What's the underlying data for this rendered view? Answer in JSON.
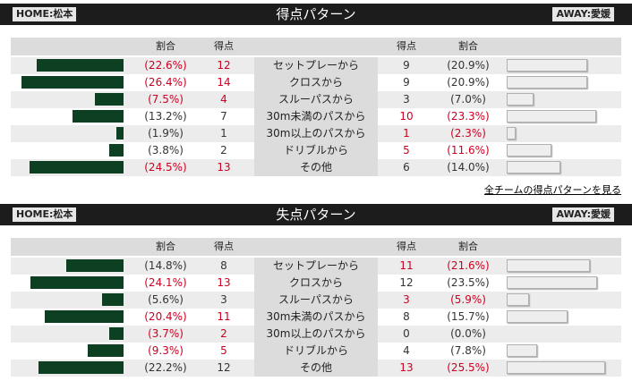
{
  "colors": {
    "home_bar": "#0d3f22",
    "away_bar": "#eeeeee",
    "highlight": "#cc0022",
    "title_bg": "#1c1c1c"
  },
  "home_tag": "HOME:松本",
  "away_tag": "AWAY:愛媛",
  "column_headers": {
    "pct": "割合",
    "count": "得点"
  },
  "sections": [
    {
      "title": "得点パターン",
      "rows": [
        {
          "label": "セットプレーから",
          "home_pct": "(22.6%)",
          "home_count": "12",
          "home_highlight": true,
          "home_value": 22.6,
          "away_count": "9",
          "away_pct": "(20.9%)",
          "away_highlight": false,
          "away_value": 20.9
        },
        {
          "label": "クロスから",
          "home_pct": "(26.4%)",
          "home_count": "14",
          "home_highlight": true,
          "home_value": 26.4,
          "away_count": "9",
          "away_pct": "(20.9%)",
          "away_highlight": false,
          "away_value": 20.9
        },
        {
          "label": "スルーパスから",
          "home_pct": "(7.5%)",
          "home_count": "4",
          "home_highlight": true,
          "home_value": 7.5,
          "away_count": "3",
          "away_pct": "(7.0%)",
          "away_highlight": false,
          "away_value": 7.0
        },
        {
          "label": "30m未満のパスから",
          "home_pct": "(13.2%)",
          "home_count": "7",
          "home_highlight": false,
          "home_value": 13.2,
          "away_count": "10",
          "away_pct": "(23.3%)",
          "away_highlight": true,
          "away_value": 23.3
        },
        {
          "label": "30m以上のパスから",
          "home_pct": "(1.9%)",
          "home_count": "1",
          "home_highlight": false,
          "home_value": 1.9,
          "away_count": "1",
          "away_pct": "(2.3%)",
          "away_highlight": true,
          "away_value": 2.3
        },
        {
          "label": "ドリブルから",
          "home_pct": "(3.8%)",
          "home_count": "2",
          "home_highlight": false,
          "home_value": 3.8,
          "away_count": "5",
          "away_pct": "(11.6%)",
          "away_highlight": true,
          "away_value": 11.6
        },
        {
          "label": "その他",
          "home_pct": "(24.5%)",
          "home_count": "13",
          "home_highlight": true,
          "home_value": 24.5,
          "away_count": "6",
          "away_pct": "(14.0%)",
          "away_highlight": false,
          "away_value": 14.0
        }
      ],
      "link": "全チームの得点パターンを見る"
    },
    {
      "title": "失点パターン",
      "rows": [
        {
          "label": "セットプレーから",
          "home_pct": "(14.8%)",
          "home_count": "8",
          "home_highlight": false,
          "home_value": 14.8,
          "away_count": "11",
          "away_pct": "(21.6%)",
          "away_highlight": true,
          "away_value": 21.6
        },
        {
          "label": "クロスから",
          "home_pct": "(24.1%)",
          "home_count": "13",
          "home_highlight": true,
          "home_value": 24.1,
          "away_count": "12",
          "away_pct": "(23.5%)",
          "away_highlight": false,
          "away_value": 23.5
        },
        {
          "label": "スルーパスから",
          "home_pct": "(5.6%)",
          "home_count": "3",
          "home_highlight": false,
          "home_value": 5.6,
          "away_count": "3",
          "away_pct": "(5.9%)",
          "away_highlight": true,
          "away_value": 5.9
        },
        {
          "label": "30m未満のパスから",
          "home_pct": "(20.4%)",
          "home_count": "11",
          "home_highlight": true,
          "home_value": 20.4,
          "away_count": "8",
          "away_pct": "(15.7%)",
          "away_highlight": false,
          "away_value": 15.7
        },
        {
          "label": "30m以上のパスから",
          "home_pct": "(3.7%)",
          "home_count": "2",
          "home_highlight": true,
          "home_value": 3.7,
          "away_count": "0",
          "away_pct": "(0.0%)",
          "away_highlight": false,
          "away_value": 0.0
        },
        {
          "label": "ドリブルから",
          "home_pct": "(9.3%)",
          "home_count": "5",
          "home_highlight": true,
          "home_value": 9.3,
          "away_count": "4",
          "away_pct": "(7.8%)",
          "away_highlight": false,
          "away_value": 7.8
        },
        {
          "label": "その他",
          "home_pct": "(22.2%)",
          "home_count": "12",
          "home_highlight": false,
          "home_value": 22.2,
          "away_count": "13",
          "away_pct": "(25.5%)",
          "away_highlight": true,
          "away_value": 25.5
        }
      ]
    }
  ]
}
